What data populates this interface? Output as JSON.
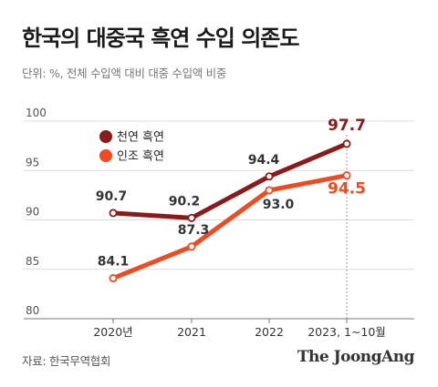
{
  "title": "한국의 대중국 흑연 수입 의존도",
  "subtitle": "단위: %, 전체 수입액 대비 대중 수입액 비중",
  "source": "자료: 한국무역협회",
  "brand": "The JoongAng",
  "chart_data": {
    "type": "line",
    "categories": [
      "2020년",
      "2021",
      "2022",
      "2023, 1~10월"
    ],
    "ylim": [
      80,
      100
    ],
    "yticks": [
      80,
      85,
      90,
      95,
      100
    ],
    "grid": true,
    "legend_position": "top-left",
    "series": [
      {
        "name": "천연 흑연",
        "values": [
          90.7,
          90.2,
          94.4,
          97.7
        ],
        "color": "#8b1a1a"
      },
      {
        "name": "인조 흑연",
        "values": [
          84.1,
          87.3,
          93.0,
          94.5
        ],
        "color": "#f04a1e"
      }
    ]
  }
}
